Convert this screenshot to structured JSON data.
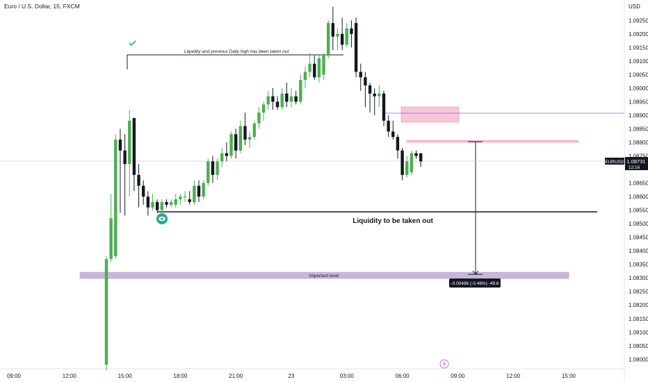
{
  "header": {
    "title": "Euro / U.S. Dollar, 15, FXCM",
    "currency": "USD"
  },
  "price_tag": {
    "symbol": "EURUSD",
    "price": "1.08731",
    "countdown": "12:16"
  },
  "annotations": {
    "liquidity_taken": "Liquidity and previous Daily high has been taken out",
    "liquidity_target": "Liquidity to be taken out",
    "important_level": "Important level",
    "measure_label": "-0.00496 (-0.46%) -49.6"
  },
  "colors": {
    "up": "#4caf50",
    "down": "#131722",
    "zone_pink": "#f8bbd0",
    "zone_purple": "#c7b3db",
    "indigo": "#7b61ff"
  },
  "chart_data": {
    "type": "candlestick",
    "y_ticks": [
      "1.09250",
      "1.09200",
      "1.09150",
      "1.09100",
      "1.09050",
      "1.09000",
      "1.08950",
      "1.08900",
      "1.08850",
      "1.08800",
      "1.08750",
      "1.08650",
      "1.08600",
      "1.08550",
      "1.08500",
      "1.08450",
      "1.08400",
      "1.08350",
      "1.08300",
      "1.08250",
      "1.08200",
      "1.08150",
      "1.08100",
      "1.08050",
      "1.08000"
    ],
    "x_ticks": [
      "09:00",
      "12:00",
      "15:00",
      "18:00",
      "21:00",
      "23",
      "03:00",
      "06:00",
      "09:00",
      "12:00",
      "15:00"
    ],
    "ylim": [
      1.07965,
      1.09325
    ],
    "interval_minutes": 15,
    "candles": [
      {
        "t": "14:00",
        "o": 1.0798,
        "h": 1.0838,
        "l": 1.0796,
        "c": 1.0837
      },
      {
        "t": "14:15",
        "o": 1.0837,
        "h": 1.0861,
        "l": 1.0836,
        "c": 1.0852
      },
      {
        "t": "14:30",
        "o": 1.0838,
        "h": 1.0883,
        "l": 1.0837,
        "c": 1.0881
      },
      {
        "t": "14:45",
        "o": 1.0881,
        "h": 1.0885,
        "l": 1.0854,
        "c": 1.0877
      },
      {
        "t": "15:00",
        "o": 1.0877,
        "h": 1.0883,
        "l": 1.0853,
        "c": 1.0872
      },
      {
        "t": "15:15",
        "o": 1.0872,
        "h": 1.0892,
        "l": 1.086,
        "c": 1.0888
      },
      {
        "t": "15:30",
        "o": 1.0889,
        "h": 1.0889,
        "l": 1.0862,
        "c": 1.0868
      },
      {
        "t": "15:45",
        "o": 1.0868,
        "h": 1.0872,
        "l": 1.0856,
        "c": 1.0864
      },
      {
        "t": "16:00",
        "o": 1.0864,
        "h": 1.0866,
        "l": 1.0857,
        "c": 1.086
      },
      {
        "t": "16:15",
        "o": 1.086,
        "h": 1.0862,
        "l": 1.0853,
        "c": 1.0856
      },
      {
        "t": "16:30",
        "o": 1.0856,
        "h": 1.0861,
        "l": 1.0855,
        "c": 1.0858
      },
      {
        "t": "16:45",
        "o": 1.0858,
        "h": 1.0859,
        "l": 1.0854,
        "c": 1.0855
      },
      {
        "t": "17:00",
        "o": 1.0855,
        "h": 1.0859,
        "l": 1.0854,
        "c": 1.0858
      },
      {
        "t": "17:15",
        "o": 1.0858,
        "h": 1.0859,
        "l": 1.0856,
        "c": 1.0857
      },
      {
        "t": "17:30",
        "o": 1.0857,
        "h": 1.0859,
        "l": 1.0856,
        "c": 1.0858
      },
      {
        "t": "17:45",
        "o": 1.0857,
        "h": 1.0861,
        "l": 1.0856,
        "c": 1.0859
      },
      {
        "t": "18:00",
        "o": 1.0859,
        "h": 1.0861,
        "l": 1.0857,
        "c": 1.086
      },
      {
        "t": "18:15",
        "o": 1.086,
        "h": 1.0862,
        "l": 1.0858,
        "c": 1.086
      },
      {
        "t": "18:30",
        "o": 1.0859,
        "h": 1.0862,
        "l": 1.0857,
        "c": 1.0858
      },
      {
        "t": "18:45",
        "o": 1.0858,
        "h": 1.0866,
        "l": 1.0857,
        "c": 1.0864
      },
      {
        "t": "19:00",
        "o": 1.0864,
        "h": 1.0866,
        "l": 1.0858,
        "c": 1.086
      },
      {
        "t": "19:15",
        "o": 1.086,
        "h": 1.0866,
        "l": 1.0859,
        "c": 1.0865
      },
      {
        "t": "19:30",
        "o": 1.0865,
        "h": 1.0874,
        "l": 1.0864,
        "c": 1.0873
      },
      {
        "t": "19:45",
        "o": 1.0873,
        "h": 1.0875,
        "l": 1.0865,
        "c": 1.0868
      },
      {
        "t": "20:00",
        "o": 1.0868,
        "h": 1.0874,
        "l": 1.0866,
        "c": 1.0873
      },
      {
        "t": "20:15",
        "o": 1.0873,
        "h": 1.0878,
        "l": 1.0871,
        "c": 1.0876
      },
      {
        "t": "20:30",
        "o": 1.0876,
        "h": 1.088,
        "l": 1.0873,
        "c": 1.0875
      },
      {
        "t": "20:45",
        "o": 1.0875,
        "h": 1.0884,
        "l": 1.0874,
        "c": 1.0883
      },
      {
        "t": "21:00",
        "o": 1.0883,
        "h": 1.0885,
        "l": 1.0874,
        "c": 1.0877
      },
      {
        "t": "21:15",
        "o": 1.0877,
        "h": 1.0888,
        "l": 1.0876,
        "c": 1.0886
      },
      {
        "t": "21:30",
        "o": 1.0886,
        "h": 1.0891,
        "l": 1.0879,
        "c": 1.0881
      },
      {
        "t": "21:45",
        "o": 1.0881,
        "h": 1.0884,
        "l": 1.0878,
        "c": 1.0882
      },
      {
        "t": "22:00",
        "o": 1.0882,
        "h": 1.0888,
        "l": 1.0881,
        "c": 1.0887
      },
      {
        "t": "22:15",
        "o": 1.0887,
        "h": 1.0893,
        "l": 1.0885,
        "c": 1.0891
      },
      {
        "t": "22:30",
        "o": 1.0891,
        "h": 1.0895,
        "l": 1.0888,
        "c": 1.0894
      },
      {
        "t": "22:45",
        "o": 1.0894,
        "h": 1.0899,
        "l": 1.0892,
        "c": 1.0897
      },
      {
        "t": "23:00",
        "o": 1.0897,
        "h": 1.09,
        "l": 1.0892,
        "c": 1.0895
      },
      {
        "t": "23:15",
        "o": 1.0895,
        "h": 1.0897,
        "l": 1.0892,
        "c": 1.0893
      },
      {
        "t": "23:30",
        "o": 1.0893,
        "h": 1.09,
        "l": 1.0892,
        "c": 1.0898
      },
      {
        "t": "23:45",
        "o": 1.0898,
        "h": 1.0902,
        "l": 1.0893,
        "c": 1.0895
      },
      {
        "t": "00:00",
        "o": 1.0895,
        "h": 1.09,
        "l": 1.0893,
        "c": 1.0897
      },
      {
        "t": "00:15",
        "o": 1.0897,
        "h": 1.0899,
        "l": 1.0894,
        "c": 1.0895
      },
      {
        "t": "00:30",
        "o": 1.0895,
        "h": 1.0905,
        "l": 1.0894,
        "c": 1.0903
      },
      {
        "t": "00:45",
        "o": 1.0903,
        "h": 1.0908,
        "l": 1.09,
        "c": 1.0906
      },
      {
        "t": "01:00",
        "o": 1.0906,
        "h": 1.0913,
        "l": 1.0904,
        "c": 1.0909
      },
      {
        "t": "01:15",
        "o": 1.0909,
        "h": 1.0912,
        "l": 1.0903,
        "c": 1.0904
      },
      {
        "t": "01:30",
        "o": 1.0904,
        "h": 1.0912,
        "l": 1.0902,
        "c": 1.0911
      },
      {
        "t": "01:45",
        "o": 1.0905,
        "h": 1.0913,
        "l": 1.0903,
        "c": 1.0912
      },
      {
        "t": "02:00",
        "o": 1.0912,
        "h": 1.0925,
        "l": 1.0911,
        "c": 1.0924
      },
      {
        "t": "02:15",
        "o": 1.0924,
        "h": 1.093,
        "l": 1.0914,
        "c": 1.0919
      },
      {
        "t": "02:30",
        "o": 1.0919,
        "h": 1.0922,
        "l": 1.0914,
        "c": 1.092
      },
      {
        "t": "02:45",
        "o": 1.092,
        "h": 1.0926,
        "l": 1.0914,
        "c": 1.0916
      },
      {
        "t": "03:00",
        "o": 1.0916,
        "h": 1.0924,
        "l": 1.0915,
        "c": 1.0922
      },
      {
        "t": "03:15",
        "o": 1.0922,
        "h": 1.0925,
        "l": 1.0915,
        "c": 1.092
      },
      {
        "t": "03:30",
        "o": 1.0924,
        "h": 1.0926,
        "l": 1.0904,
        "c": 1.0906
      },
      {
        "t": "03:45",
        "o": 1.0906,
        "h": 1.0909,
        "l": 1.0899,
        "c": 1.0904
      },
      {
        "t": "04:00",
        "o": 1.0904,
        "h": 1.0906,
        "l": 1.0893,
        "c": 1.0901
      },
      {
        "t": "04:15",
        "o": 1.0901,
        "h": 1.0902,
        "l": 1.0891,
        "c": 1.0898
      },
      {
        "t": "04:30",
        "o": 1.0898,
        "h": 1.09,
        "l": 1.089,
        "c": 1.0897
      },
      {
        "t": "04:45",
        "o": 1.0897,
        "h": 1.0901,
        "l": 1.0893,
        "c": 1.0898
      },
      {
        "t": "05:00",
        "o": 1.0898,
        "h": 1.0899,
        "l": 1.0886,
        "c": 1.0888
      },
      {
        "t": "05:15",
        "o": 1.0888,
        "h": 1.089,
        "l": 1.0882,
        "c": 1.0884
      },
      {
        "t": "05:30",
        "o": 1.0884,
        "h": 1.0888,
        "l": 1.0881,
        "c": 1.0882
      },
      {
        "t": "05:45",
        "o": 1.0882,
        "h": 1.0883,
        "l": 1.0874,
        "c": 1.0877
      },
      {
        "t": "06:00",
        "o": 1.0877,
        "h": 1.0878,
        "l": 1.0866,
        "c": 1.0868
      },
      {
        "t": "06:15",
        "o": 1.0868,
        "h": 1.0875,
        "l": 1.0867,
        "c": 1.0873
      },
      {
        "t": "06:30",
        "o": 1.0869,
        "h": 1.0877,
        "l": 1.0868,
        "c": 1.0876
      },
      {
        "t": "06:45",
        "o": 1.0876,
        "h": 1.0877,
        "l": 1.0874,
        "c": 1.0875
      },
      {
        "t": "07:00",
        "o": 1.0876,
        "h": 1.0876,
        "l": 1.0871,
        "c": 1.0873
      }
    ]
  }
}
